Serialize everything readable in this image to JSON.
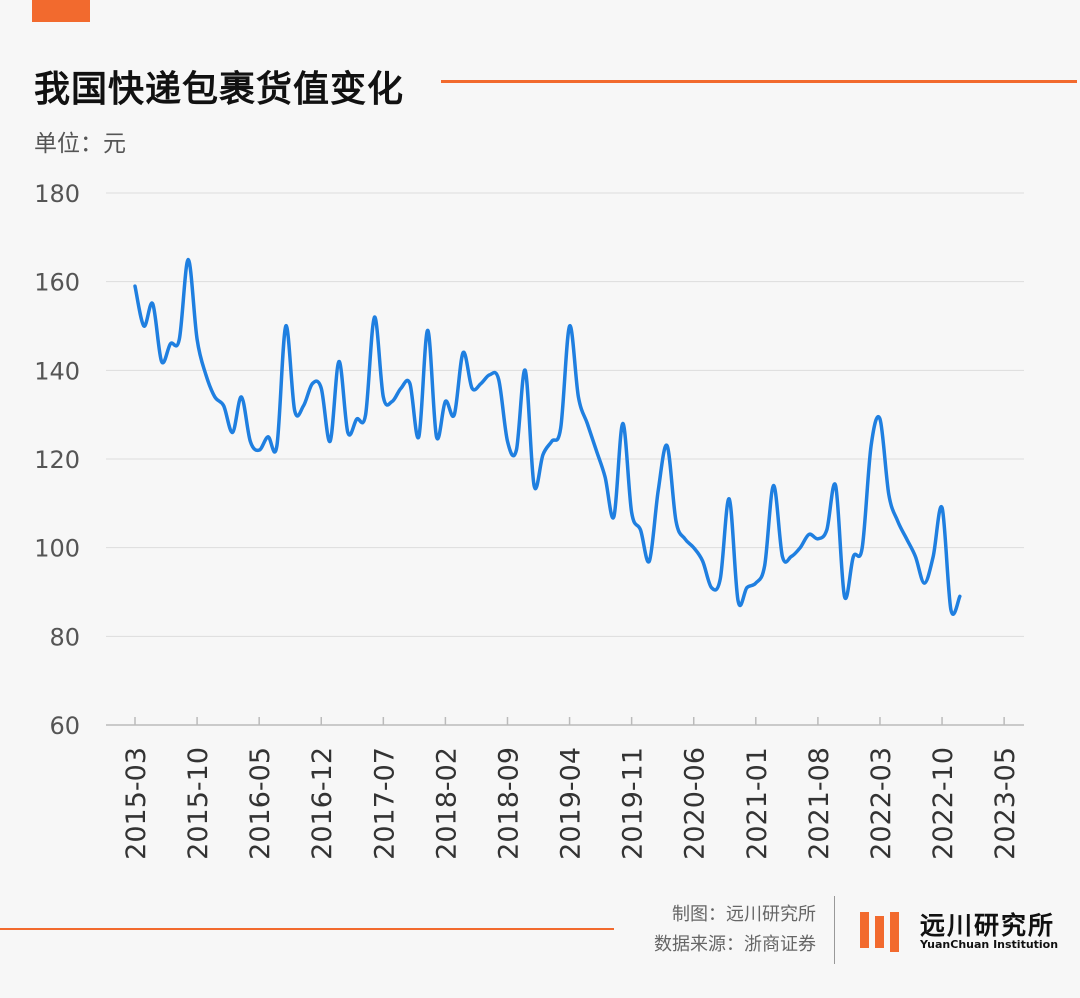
{
  "header": {
    "title": "我国快递包裹货值变化",
    "unit": "单位：元"
  },
  "footer": {
    "credit": "制图：远川研究所",
    "source": "数据来源：浙商证券",
    "logo_text": "远川研究所",
    "logo_sub": "YuanChuan Institution"
  },
  "colors": {
    "accent": "#f26a2e",
    "line": "#1f7fe0",
    "grid": "#dcdcdc",
    "text": "#555555"
  },
  "chart_data": {
    "type": "line",
    "title": "我国快递包裹货值变化",
    "ylabel": "单位：元",
    "ylim": [
      60,
      180
    ],
    "yticks": [
      60,
      80,
      100,
      120,
      140,
      160,
      180
    ],
    "grid": true,
    "x_tick_labels": [
      "2015-03",
      "2015-10",
      "2016-05",
      "2016-12",
      "2017-07",
      "2018-02",
      "2018-09",
      "2019-04",
      "2019-11",
      "2020-06",
      "2021-01",
      "2021-08",
      "2022-03",
      "2022-10",
      "2023-05"
    ],
    "x_start": "2015-03",
    "x_end": "2023-06",
    "series": [
      {
        "values": [
          159,
          150,
          155,
          142,
          146,
          147,
          165,
          147,
          139,
          134,
          132,
          126,
          134,
          124,
          122,
          125,
          123,
          150,
          131,
          132,
          137,
          136,
          124,
          142,
          126,
          129,
          130,
          152,
          134,
          133,
          136,
          137,
          125,
          149,
          125,
          133,
          130,
          144,
          136,
          137,
          139,
          138,
          124,
          122,
          140,
          114,
          121,
          124,
          127,
          150,
          134,
          128,
          122,
          116,
          107,
          128,
          108,
          104,
          97,
          113,
          123,
          106,
          102,
          100,
          97,
          91,
          93,
          111,
          88,
          91,
          92,
          96,
          114,
          98,
          98,
          100,
          103,
          102,
          104,
          114,
          89,
          98,
          100,
          123,
          129,
          112,
          106,
          102,
          98,
          92,
          98,
          109,
          86,
          89
        ]
      }
    ]
  }
}
